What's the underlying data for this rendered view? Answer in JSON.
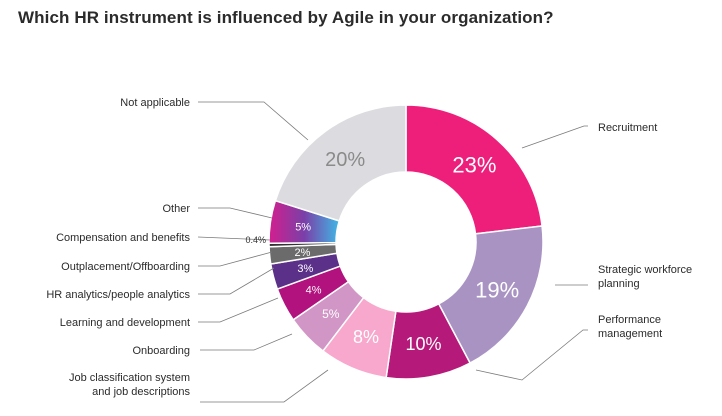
{
  "chart_data": {
    "type": "pie",
    "variant": "donut",
    "title": "Which HR instrument is influenced by Agile in your organization?",
    "categories": [
      "Recruitment",
      "Strategic workforce planning",
      "Performance management",
      "Job classification system and job descriptions",
      "Onboarding",
      "Learning and development",
      "HR analytics/people analytics",
      "Outplacement/Offboarding",
      "Compensation and benefits",
      "Other",
      "Not applicable"
    ],
    "values": [
      23,
      19,
      10,
      8,
      5,
      4,
      3,
      2,
      0.4,
      5,
      20
    ],
    "value_labels": [
      "23%",
      "19%",
      "10%",
      "8%",
      "5%",
      "4%",
      "3%",
      "2%",
      "0.4%",
      "5%",
      "20%"
    ],
    "colors": [
      "#ee1f7b",
      "#a993c3",
      "#b5197a",
      "#f7a8cc",
      "#d196c6",
      "#b1127d",
      "#5b3088",
      "#6b6b6b",
      "#333333",
      "gradient",
      "#dcdce0"
    ],
    "label_lines": [
      [
        "Recruitment"
      ],
      [
        "Strategic workforce",
        "planning"
      ],
      [
        "Performance",
        "management"
      ],
      [
        "Job classification system",
        "and job descriptions"
      ],
      [
        "Onboarding"
      ],
      [
        "Learning and development"
      ],
      [
        "HR analytics/people analytics"
      ],
      [
        "Outplacement/Offboarding"
      ],
      [
        "Compensation and benefits"
      ],
      [
        "Other"
      ],
      [
        "Not applicable"
      ]
    ],
    "legend": "none"
  }
}
